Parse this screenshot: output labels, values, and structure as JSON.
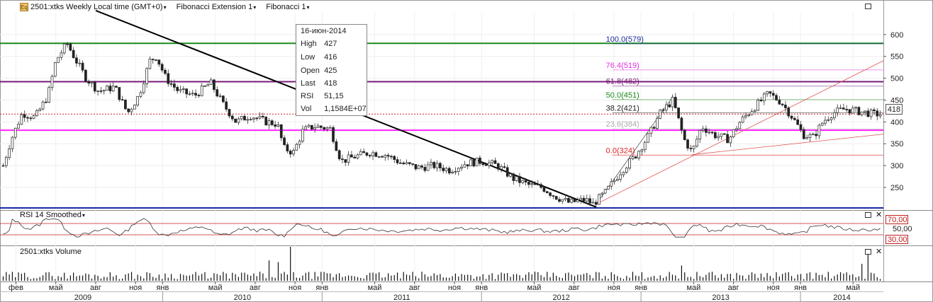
{
  "toolbar": {
    "icon_label": "Eq",
    "instrument": "2501:xtks Weekly Local time (GMT+0)",
    "study1": "Fibonacci Extension 1",
    "study2": "Fibonacci 1"
  },
  "tooltip": {
    "date": "16-июн-2014",
    "rows": [
      {
        "k": "High",
        "v": "427"
      },
      {
        "k": "Low",
        "v": "416"
      },
      {
        "k": "Open",
        "v": "425"
      },
      {
        "k": "Last",
        "v": "418"
      },
      {
        "k": "RSI",
        "v": "51,15"
      },
      {
        "k": "Vol",
        "v": "1,1584E+07"
      }
    ]
  },
  "panels": {
    "rsi_title": "RSI 14 Smoothed",
    "volume_title": "2501:xtks Volume"
  },
  "colors": {
    "up": "#0a6e0a",
    "down": "#d02020",
    "fib_green": "#1a8a1a",
    "fib_purple": "#7a1a7a",
    "fib_magenta": "#ff22ff",
    "fib_blue": "#1a2aa0",
    "trend": "#000000",
    "price_line": "#d02020"
  },
  "chart_data": {
    "type": "candlestick",
    "price_axis": {
      "ticks": [
        600,
        550,
        500,
        450,
        400,
        350,
        300,
        250
      ],
      "range": [
        203,
        650
      ]
    },
    "last_price": "418",
    "fib_levels": [
      {
        "label": "100.0(579)",
        "value": 579,
        "color": "#1a2aa0"
      },
      {
        "label": "76.4(519)",
        "value": 519,
        "color": "#e030e0"
      },
      {
        "label": "61.8(482)",
        "value": 482,
        "color": "#7a1a7a"
      },
      {
        "label": "50.0(451)",
        "value": 451,
        "color": "#1a8a1a"
      },
      {
        "label": "38.2(421)",
        "value": 421,
        "color": "#222222"
      },
      {
        "label": "23.6(384)",
        "value": 384,
        "color": "#aaaaaa"
      },
      {
        "label": "0.0(324)",
        "value": 324,
        "color": "#e02020"
      }
    ],
    "horizontal_lines": [
      {
        "value": 580,
        "color": "#1a8a1a"
      },
      {
        "value": 492,
        "color": "#7a1a7a"
      },
      {
        "value": 381,
        "color": "#ff22ff"
      },
      {
        "value": 203,
        "color": "#1a2aa0"
      }
    ],
    "x_months": [
      {
        "label": "фев",
        "t": 2009.08
      },
      {
        "label": "май",
        "t": 2009.33
      },
      {
        "label": "авг",
        "t": 2009.58
      },
      {
        "label": "ноя",
        "t": 2009.83
      },
      {
        "label": "янв",
        "t": 2010.0
      },
      {
        "label": "май",
        "t": 2010.33
      },
      {
        "label": "авг",
        "t": 2010.58
      },
      {
        "label": "ноя",
        "t": 2010.83
      },
      {
        "label": "янв",
        "t": 2011.0
      },
      {
        "label": "май",
        "t": 2011.33
      },
      {
        "label": "авг",
        "t": 2011.58
      },
      {
        "label": "ноя",
        "t": 2011.83
      },
      {
        "label": "янв",
        "t": 2012.0
      },
      {
        "label": "май",
        "t": 2012.33
      },
      {
        "label": "авг",
        "t": 2012.58
      },
      {
        "label": "ноя",
        "t": 2012.83
      },
      {
        "label": "янв",
        "t": 2013.0
      },
      {
        "label": "май",
        "t": 2013.33
      },
      {
        "label": "авг",
        "t": 2013.58
      },
      {
        "label": "ноя",
        "t": 2013.83
      },
      {
        "label": "янв",
        "t": 2014.0
      },
      {
        "label": "май",
        "t": 2014.33
      }
    ],
    "x_years": [
      "2009",
      "2010",
      "2011",
      "2012",
      "2013",
      "2014"
    ],
    "price_anchors": [
      [
        2009.0,
        300
      ],
      [
        2009.05,
        360
      ],
      [
        2009.12,
        420
      ],
      [
        2009.2,
        410
      ],
      [
        2009.28,
        460
      ],
      [
        2009.33,
        540
      ],
      [
        2009.4,
        580
      ],
      [
        2009.45,
        545
      ],
      [
        2009.52,
        500
      ],
      [
        2009.6,
        470
      ],
      [
        2009.7,
        480
      ],
      [
        2009.78,
        420
      ],
      [
        2009.85,
        460
      ],
      [
        2009.92,
        540
      ],
      [
        2009.96,
        550
      ],
      [
        2010.02,
        500
      ],
      [
        2010.1,
        470
      ],
      [
        2010.2,
        460
      ],
      [
        2010.3,
        490
      ],
      [
        2010.38,
        440
      ],
      [
        2010.46,
        400
      ],
      [
        2010.55,
        415
      ],
      [
        2010.65,
        400
      ],
      [
        2010.72,
        395
      ],
      [
        2010.76,
        340
      ],
      [
        2010.82,
        330
      ],
      [
        2010.88,
        380
      ],
      [
        2010.95,
        390
      ],
      [
        2011.05,
        385
      ],
      [
        2011.12,
        310
      ],
      [
        2011.2,
        320
      ],
      [
        2011.3,
        330
      ],
      [
        2011.4,
        325
      ],
      [
        2011.5,
        305
      ],
      [
        2011.6,
        295
      ],
      [
        2011.7,
        300
      ],
      [
        2011.8,
        290
      ],
      [
        2011.9,
        305
      ],
      [
        2012.0,
        310
      ],
      [
        2012.1,
        300
      ],
      [
        2012.2,
        270
      ],
      [
        2012.3,
        255
      ],
      [
        2012.38,
        250
      ],
      [
        2012.46,
        230
      ],
      [
        2012.55,
        215
      ],
      [
        2012.65,
        222
      ],
      [
        2012.7,
        212
      ],
      [
        2012.78,
        240
      ],
      [
        2012.88,
        290
      ],
      [
        2012.96,
        320
      ],
      [
        2013.05,
        370
      ],
      [
        2013.12,
        420
      ],
      [
        2013.2,
        450
      ],
      [
        2013.27,
        360
      ],
      [
        2013.32,
        330
      ],
      [
        2013.38,
        390
      ],
      [
        2013.46,
        370
      ],
      [
        2013.55,
        360
      ],
      [
        2013.62,
        400
      ],
      [
        2013.7,
        430
      ],
      [
        2013.8,
        465
      ],
      [
        2013.88,
        445
      ],
      [
        2013.95,
        410
      ],
      [
        2014.02,
        370
      ],
      [
        2014.08,
        365
      ],
      [
        2014.14,
        400
      ],
      [
        2014.2,
        420
      ],
      [
        2014.28,
        430
      ],
      [
        2014.35,
        425
      ],
      [
        2014.46,
        418
      ]
    ],
    "rsi": {
      "levels": [
        "70,00",
        "50,00",
        "30,00"
      ],
      "range": [
        0,
        100
      ]
    },
    "volume": {
      "spikes": [
        [
          2010.67,
          0.6
        ],
        [
          2010.8,
          1.0
        ],
        [
          2010.73,
          0.55
        ],
        [
          2013.25,
          0.45
        ],
        [
          2014.38,
          0.5
        ],
        [
          2014.42,
          0.8
        ]
      ]
    }
  }
}
